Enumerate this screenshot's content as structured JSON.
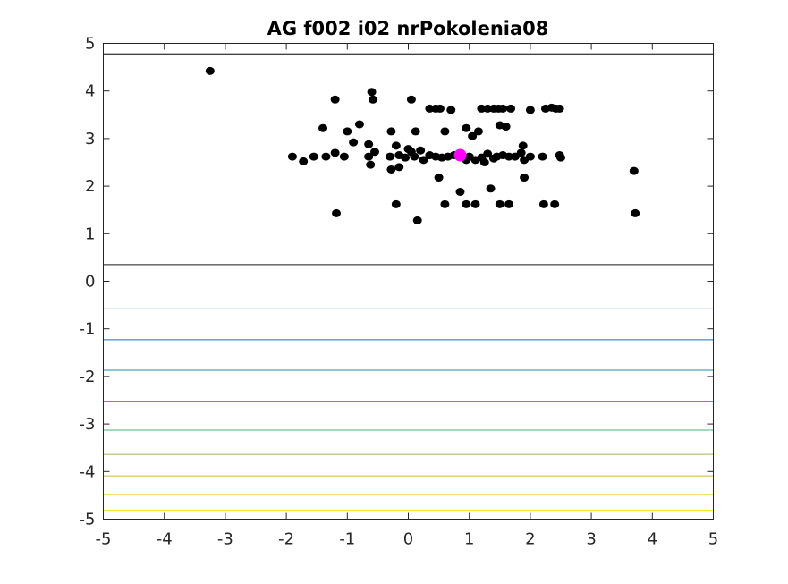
{
  "chart_data": {
    "type": "scatter",
    "title": "AG f002 i02 nrPokolenia08",
    "xlabel": "",
    "ylabel": "",
    "xlim": [
      -5,
      5
    ],
    "ylim": [
      -5,
      5
    ],
    "xticks": [
      -5,
      -4,
      -3,
      -2,
      -1,
      0,
      1,
      2,
      3,
      4,
      5
    ],
    "yticks": [
      -5,
      -4,
      -3,
      -2,
      -1,
      0,
      1,
      2,
      3,
      4,
      5
    ],
    "grid": false,
    "contour_lines": [
      {
        "y": 4.78,
        "color": "#000000"
      },
      {
        "y": 0.35,
        "color": "#1a1a1a"
      },
      {
        "y": -0.58,
        "color": "#2c5aa8"
      },
      {
        "y": -1.23,
        "color": "#1a6fb5"
      },
      {
        "y": -1.87,
        "color": "#1a8fa8"
      },
      {
        "y": -2.52,
        "color": "#1ea394"
      },
      {
        "y": -3.13,
        "color": "#4cb07a"
      },
      {
        "y": -3.64,
        "color": "#a4b35c"
      },
      {
        "y": -4.09,
        "color": "#d4b43c"
      },
      {
        "y": -4.48,
        "color": "#ecc52a"
      },
      {
        "y": -4.81,
        "color": "#f5e11e"
      }
    ],
    "series": [
      {
        "color": "#000000",
        "points": [
          [
            -3.25,
            4.42
          ],
          [
            -1.2,
            3.82
          ],
          [
            -0.6,
            3.98
          ],
          [
            -0.58,
            3.82
          ],
          [
            0.05,
            3.82
          ],
          [
            0.35,
            3.63
          ],
          [
            0.45,
            3.63
          ],
          [
            0.52,
            3.63
          ],
          [
            0.7,
            3.6
          ],
          [
            1.2,
            3.63
          ],
          [
            1.3,
            3.63
          ],
          [
            1.4,
            3.63
          ],
          [
            1.48,
            3.63
          ],
          [
            1.55,
            3.63
          ],
          [
            1.68,
            3.63
          ],
          [
            2.0,
            3.6
          ],
          [
            2.25,
            3.63
          ],
          [
            2.35,
            3.65
          ],
          [
            2.42,
            3.63
          ],
          [
            2.48,
            3.63
          ],
          [
            -1.4,
            3.22
          ],
          [
            -1.0,
            3.15
          ],
          [
            -0.8,
            3.3
          ],
          [
            -0.28,
            3.15
          ],
          [
            0.12,
            3.15
          ],
          [
            0.6,
            3.15
          ],
          [
            0.95,
            3.22
          ],
          [
            1.05,
            3.05
          ],
          [
            1.15,
            3.15
          ],
          [
            1.5,
            3.28
          ],
          [
            1.6,
            3.25
          ],
          [
            -0.9,
            2.92
          ],
          [
            -0.65,
            2.88
          ],
          [
            -0.2,
            2.85
          ],
          [
            0.0,
            2.78
          ],
          [
            0.05,
            2.72
          ],
          [
            0.2,
            2.75
          ],
          [
            -1.9,
            2.62
          ],
          [
            -1.72,
            2.52
          ],
          [
            -1.55,
            2.62
          ],
          [
            -1.35,
            2.62
          ],
          [
            -1.2,
            2.7
          ],
          [
            -1.05,
            2.62
          ],
          [
            -0.65,
            2.62
          ],
          [
            -0.55,
            2.72
          ],
          [
            -0.3,
            2.62
          ],
          [
            -0.15,
            2.65
          ],
          [
            -0.05,
            2.6
          ],
          [
            0.1,
            2.62
          ],
          [
            0.25,
            2.55
          ],
          [
            0.35,
            2.65
          ],
          [
            0.45,
            2.62
          ],
          [
            0.55,
            2.6
          ],
          [
            0.65,
            2.62
          ],
          [
            0.75,
            2.65
          ],
          [
            1.0,
            2.62
          ],
          [
            1.1,
            2.55
          ],
          [
            1.2,
            2.6
          ],
          [
            1.3,
            2.68
          ],
          [
            1.45,
            2.62
          ],
          [
            1.55,
            2.65
          ],
          [
            1.65,
            2.62
          ],
          [
            1.75,
            2.62
          ],
          [
            1.85,
            2.7
          ],
          [
            1.9,
            2.55
          ],
          [
            2.0,
            2.62
          ],
          [
            2.2,
            2.62
          ],
          [
            2.5,
            2.6
          ],
          [
            0.95,
            2.55
          ],
          [
            1.25,
            2.5
          ],
          [
            1.4,
            2.58
          ],
          [
            1.88,
            2.85
          ],
          [
            2.48,
            2.65
          ],
          [
            -0.62,
            2.45
          ],
          [
            -0.28,
            2.35
          ],
          [
            -0.15,
            2.4
          ],
          [
            0.5,
            2.18
          ],
          [
            1.9,
            2.18
          ],
          [
            3.7,
            2.32
          ],
          [
            0.85,
            1.88
          ],
          [
            1.35,
            1.95
          ],
          [
            -1.18,
            1.43
          ],
          [
            -0.2,
            1.62
          ],
          [
            0.6,
            1.62
          ],
          [
            0.95,
            1.62
          ],
          [
            1.1,
            1.62
          ],
          [
            1.5,
            1.62
          ],
          [
            1.65,
            1.62
          ],
          [
            2.22,
            1.62
          ],
          [
            2.4,
            1.62
          ],
          [
            0.15,
            1.28
          ],
          [
            3.72,
            1.43
          ]
        ]
      },
      {
        "color": "#ff00ff",
        "points": [
          [
            0.85,
            2.65
          ]
        ]
      }
    ]
  }
}
